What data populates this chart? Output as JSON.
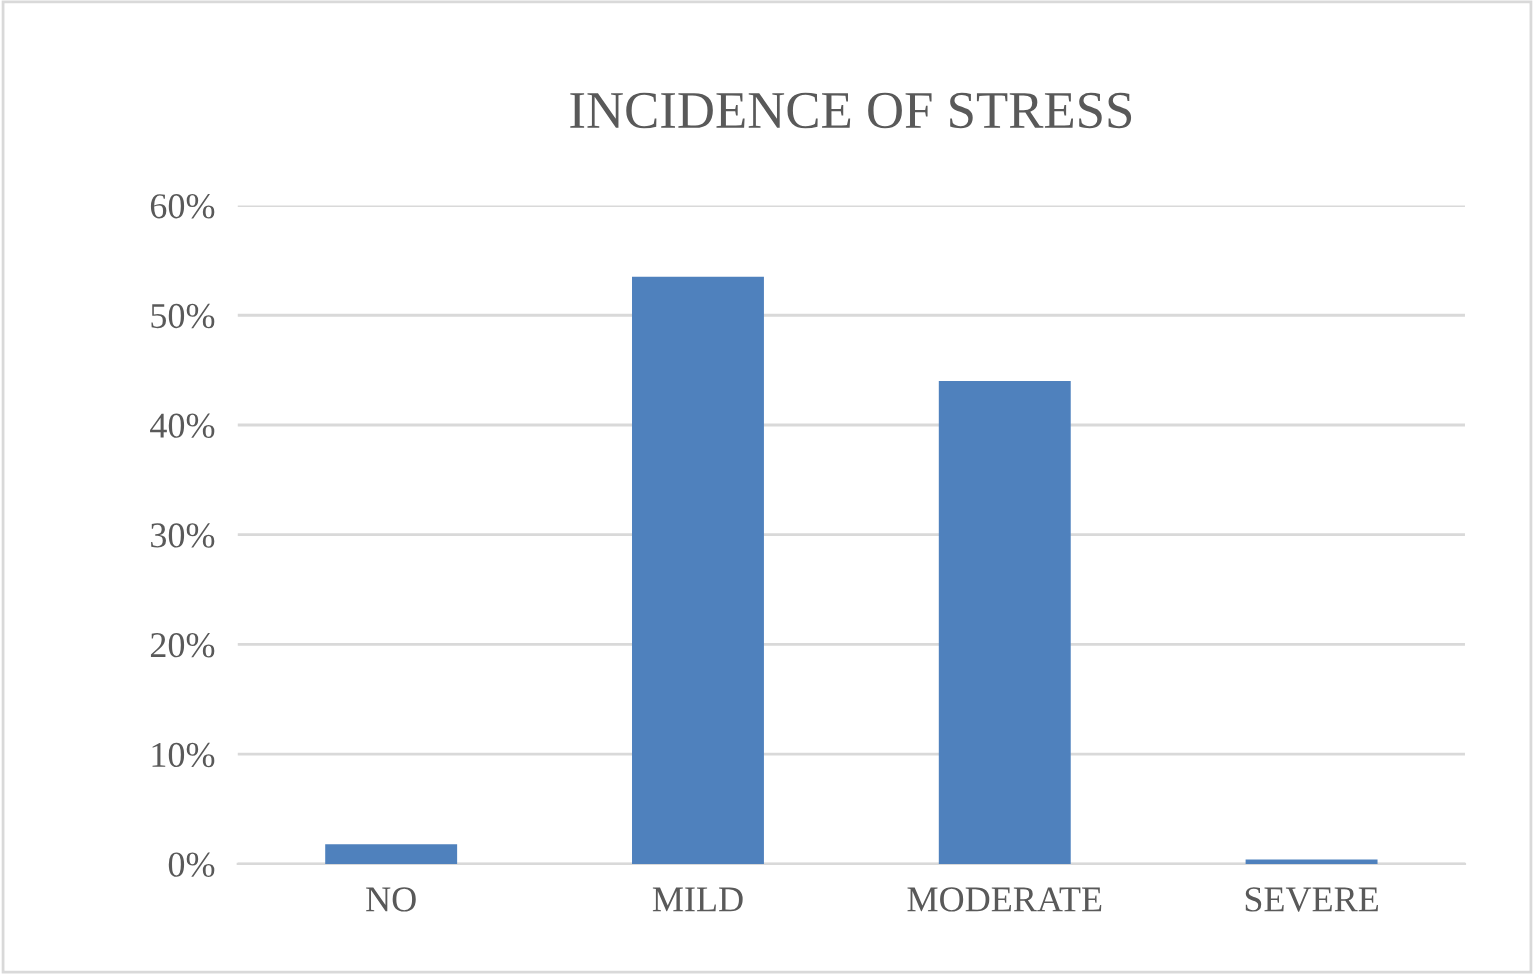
{
  "chart_data": {
    "type": "bar",
    "title": "INCIDENCE OF STRESS",
    "categories": [
      "NO",
      "MILD",
      "MODERATE",
      "SEVERE"
    ],
    "values": [
      1.8,
      53.5,
      44.0,
      0.4
    ],
    "color": "#4f81bd",
    "ylim": [
      0,
      60
    ],
    "yticks": [
      {
        "value": 0,
        "label": "0%"
      },
      {
        "value": 10,
        "label": "10%"
      },
      {
        "value": 20,
        "label": "20%"
      },
      {
        "value": 30,
        "label": "30%"
      },
      {
        "value": 40,
        "label": "40%"
      },
      {
        "value": 50,
        "label": "50%"
      },
      {
        "value": 60,
        "label": "60%"
      }
    ],
    "grid": "y"
  }
}
